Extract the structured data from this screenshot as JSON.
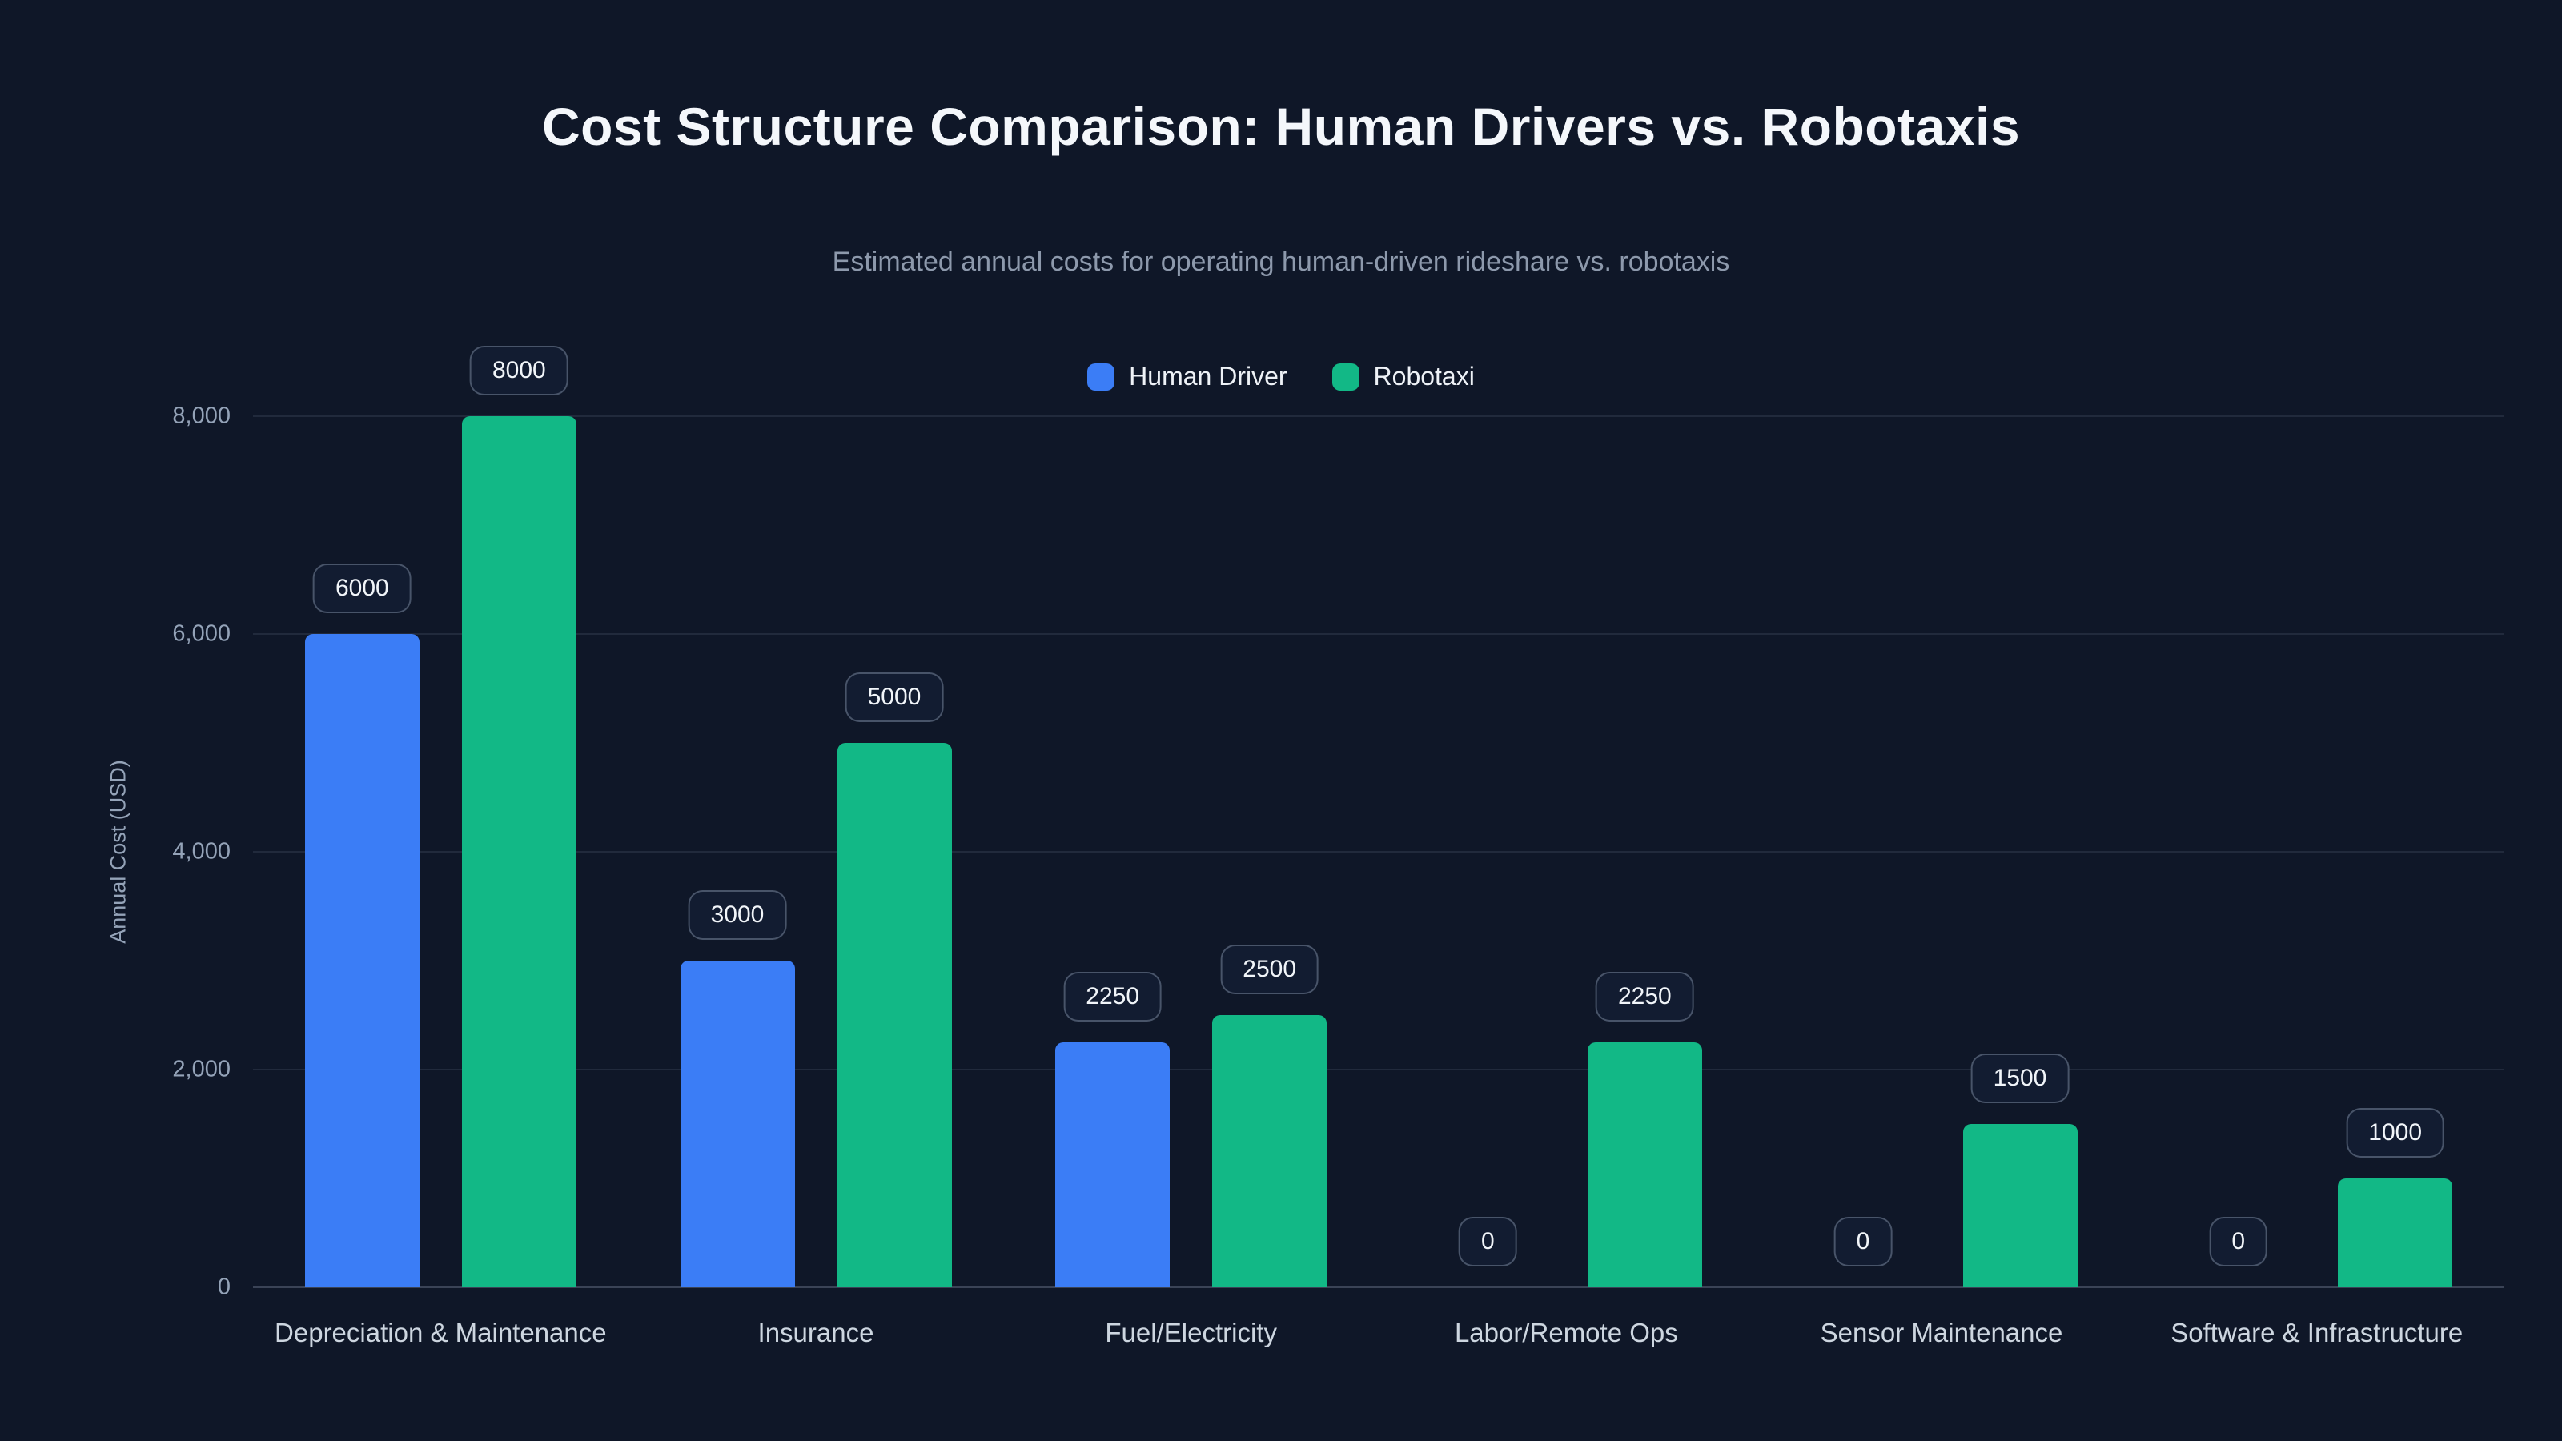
{
  "chart_data": {
    "type": "bar",
    "title": "Cost Structure Comparison: Human Drivers vs. Robotaxis",
    "subtitle": "Estimated annual costs for operating human-driven rideshare vs. robotaxis",
    "categories": [
      "Depreciation & Maintenance",
      "Insurance",
      "Fuel/Electricity",
      "Labor/Remote Ops",
      "Sensor Maintenance",
      "Software & Infrastructure"
    ],
    "series": [
      {
        "name": "Human Driver",
        "color": "#3b7df6",
        "values": [
          6000,
          3000,
          2250,
          0,
          0,
          0
        ]
      },
      {
        "name": "Robotaxi",
        "color": "#12b886",
        "values": [
          8000,
          5000,
          2500,
          2250,
          1500,
          1000
        ]
      }
    ],
    "xlabel": "",
    "ylabel": "Annual Cost (USD)",
    "ylim": [
      0,
      8000
    ],
    "yticks": [
      0,
      2000,
      4000,
      6000,
      8000
    ],
    "ytick_labels": [
      "0",
      "2,000",
      "4,000",
      "6,000",
      "8,000"
    ],
    "grid": true,
    "legend_position": "top-center",
    "show_value_labels": true,
    "value_label_style": "rounded-pill"
  },
  "colors": {
    "background": "#0f1728",
    "title_text": "#f4f7fb",
    "subtitle_text": "#8d99ac",
    "axis_text": "#94a3b8",
    "category_text": "#cdd6e0",
    "gridline": "rgba(148,163,184,0.14)",
    "pill_border": "rgba(148,163,184,0.42)",
    "pill_background": "#121c31",
    "human_driver": "#3b7df6",
    "robotaxi": "#12b886"
  }
}
